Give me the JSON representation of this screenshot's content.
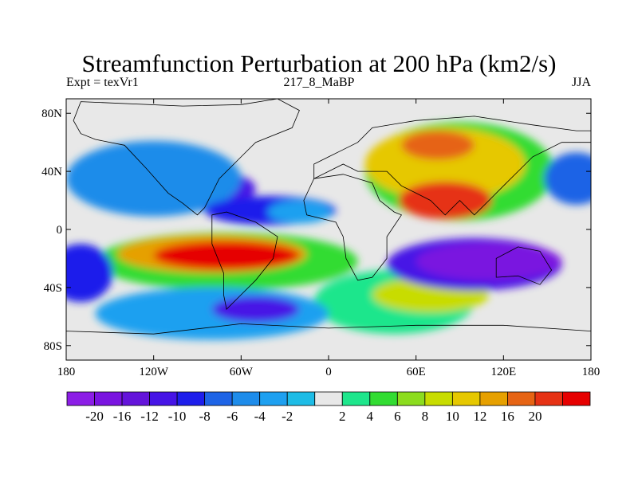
{
  "title": "Streamfunction Perturbation at 200 hPa (km2/s)",
  "subtitle_left": "Expt = texVr1",
  "subtitle_center": "217_8_MaBP",
  "subtitle_right": "JJA",
  "colors": {
    "background": "#ffffff",
    "plot_fill": "#e8e8e8",
    "outline": "#000000"
  },
  "chart_data": {
    "type": "heatmap",
    "projection": "cylindrical-equidistant",
    "title": "Streamfunction Perturbation at 200 hPa (km2/s)",
    "xlim": [
      -180,
      180
    ],
    "ylim": [
      -90,
      90
    ],
    "x_ticks": [
      {
        "value": -180,
        "label": "180"
      },
      {
        "value": -120,
        "label": "120W"
      },
      {
        "value": -60,
        "label": "60W"
      },
      {
        "value": 0,
        "label": "0"
      },
      {
        "value": 60,
        "label": "60E"
      },
      {
        "value": 120,
        "label": "120E"
      },
      {
        "value": 180,
        "label": "180"
      }
    ],
    "y_ticks": [
      {
        "value": 80,
        "label": "80N"
      },
      {
        "value": 40,
        "label": "40N"
      },
      {
        "value": 0,
        "label": "0"
      },
      {
        "value": -40,
        "label": "40S"
      },
      {
        "value": -80,
        "label": "80S"
      }
    ],
    "colorbar": {
      "colors": [
        "#8c1ee6",
        "#7a14e0",
        "#6414da",
        "#4614e6",
        "#1e1eeb",
        "#1e64e6",
        "#1e8cea",
        "#1ea0f0",
        "#1ebce6",
        "#e8e8e8",
        "#1ee68c",
        "#32dc32",
        "#8cdc1e",
        "#c8dc00",
        "#e6c800",
        "#e6a000",
        "#e66414",
        "#e63214",
        "#e60000"
      ],
      "labels": [
        "-20",
        "-16",
        "-12",
        "-10",
        "-8",
        "-6",
        "-4",
        "-2",
        "2",
        "4",
        "6",
        "8",
        "10",
        "12",
        "16",
        "20"
      ],
      "label_edges": [
        1,
        2,
        3,
        4,
        5,
        6,
        7,
        8,
        10,
        11,
        12,
        13,
        14,
        15,
        16,
        17
      ]
    },
    "features": [
      {
        "lon": -105,
        "lat": 28,
        "rx": 55,
        "ry": 16,
        "level": 3
      },
      {
        "lon": -120,
        "lat": 35,
        "rx": 60,
        "ry": 26,
        "level": 6
      },
      {
        "lon": -40,
        "lat": 13,
        "rx": 45,
        "ry": 10,
        "level": 4
      },
      {
        "lon": -20,
        "lat": 12,
        "rx": 22,
        "ry": 8,
        "level": 7
      },
      {
        "lon": 90,
        "lat": 40,
        "rx": 65,
        "ry": 34,
        "level": 11
      },
      {
        "lon": 80,
        "lat": 45,
        "rx": 55,
        "ry": 25,
        "level": 14
      },
      {
        "lon": 80,
        "lat": 20,
        "rx": 32,
        "ry": 13,
        "level": 17
      },
      {
        "lon": 75,
        "lat": 58,
        "rx": 25,
        "ry": 10,
        "level": 16
      },
      {
        "lon": -70,
        "lat": -22,
        "rx": 90,
        "ry": 20,
        "level": 11
      },
      {
        "lon": -80,
        "lat": -17,
        "rx": 65,
        "ry": 13,
        "level": 15
      },
      {
        "lon": -70,
        "lat": -18,
        "rx": 50,
        "ry": 10,
        "level": 18
      },
      {
        "lon": 45,
        "lat": -50,
        "rx": 55,
        "ry": 22,
        "level": 10
      },
      {
        "lon": 70,
        "lat": -45,
        "rx": 40,
        "ry": 12,
        "level": 13
      },
      {
        "lon": 100,
        "lat": -24,
        "rx": 60,
        "ry": 18,
        "level": 3
      },
      {
        "lon": 110,
        "lat": -22,
        "rx": 50,
        "ry": 13,
        "level": 1
      },
      {
        "lon": -80,
        "lat": -58,
        "rx": 80,
        "ry": 18,
        "level": 7
      },
      {
        "lon": -50,
        "lat": -55,
        "rx": 30,
        "ry": 9,
        "level": 3
      },
      {
        "lon": -170,
        "lat": -30,
        "rx": 22,
        "ry": 20,
        "level": 4
      },
      {
        "lon": 170,
        "lat": 35,
        "rx": 22,
        "ry": 18,
        "level": 5
      }
    ],
    "outlines": [
      [
        [
          -170,
          88
        ],
        [
          -100,
          85
        ],
        [
          -60,
          86
        ],
        [
          -35,
          90
        ],
        [
          -20,
          82
        ],
        [
          -25,
          70
        ],
        [
          -50,
          60
        ],
        [
          -60,
          50
        ],
        [
          -65,
          45
        ],
        [
          -75,
          35
        ],
        [
          -80,
          25
        ],
        [
          -85,
          15
        ],
        [
          -90,
          10
        ],
        [
          -100,
          18
        ],
        [
          -110,
          25
        ],
        [
          -125,
          42
        ],
        [
          -140,
          58
        ],
        [
          -160,
          62
        ],
        [
          -170,
          66
        ],
        [
          -175,
          75
        ],
        [
          -170,
          88
        ]
      ],
      [
        [
          -80,
          10
        ],
        [
          -70,
          12
        ],
        [
          -50,
          5
        ],
        [
          -35,
          -5
        ],
        [
          -38,
          -20
        ],
        [
          -50,
          -35
        ],
        [
          -60,
          -45
        ],
        [
          -70,
          -55
        ],
        [
          -72,
          -45
        ],
        [
          -72,
          -30
        ],
        [
          -80,
          -10
        ],
        [
          -80,
          10
        ]
      ],
      [
        [
          -10,
          35
        ],
        [
          10,
          38
        ],
        [
          30,
          32
        ],
        [
          35,
          20
        ],
        [
          45,
          12
        ],
        [
          50,
          10
        ],
        [
          40,
          -5
        ],
        [
          40,
          -20
        ],
        [
          30,
          -33
        ],
        [
          20,
          -35
        ],
        [
          12,
          -20
        ],
        [
          10,
          -5
        ],
        [
          5,
          5
        ],
        [
          -15,
          10
        ],
        [
          -17,
          20
        ],
        [
          -10,
          35
        ]
      ],
      [
        [
          -10,
          35
        ],
        [
          -10,
          45
        ],
        [
          0,
          50
        ],
        [
          10,
          55
        ],
        [
          20,
          60
        ],
        [
          30,
          70
        ],
        [
          60,
          75
        ],
        [
          100,
          78
        ],
        [
          140,
          72
        ],
        [
          170,
          68
        ],
        [
          180,
          68
        ],
        [
          180,
          60
        ],
        [
          160,
          60
        ],
        [
          140,
          50
        ],
        [
          130,
          40
        ],
        [
          120,
          30
        ],
        [
          110,
          20
        ],
        [
          100,
          10
        ],
        [
          90,
          20
        ],
        [
          80,
          10
        ],
        [
          70,
          20
        ],
        [
          60,
          25
        ],
        [
          50,
          30
        ],
        [
          40,
          40
        ],
        [
          30,
          40
        ],
        [
          20,
          40
        ],
        [
          10,
          45
        ],
        [
          0,
          40
        ],
        [
          -10,
          35
        ]
      ],
      [
        [
          115,
          -20
        ],
        [
          130,
          -12
        ],
        [
          145,
          -15
        ],
        [
          153,
          -28
        ],
        [
          145,
          -38
        ],
        [
          130,
          -32
        ],
        [
          115,
          -33
        ],
        [
          115,
          -20
        ]
      ],
      [
        [
          -180,
          -70
        ],
        [
          -120,
          -72
        ],
        [
          -60,
          -65
        ],
        [
          0,
          -68
        ],
        [
          60,
          -66
        ],
        [
          120,
          -66
        ],
        [
          180,
          -70
        ],
        [
          180,
          -90
        ],
        [
          -180,
          -90
        ],
        [
          -180,
          -70
        ]
      ]
    ]
  }
}
